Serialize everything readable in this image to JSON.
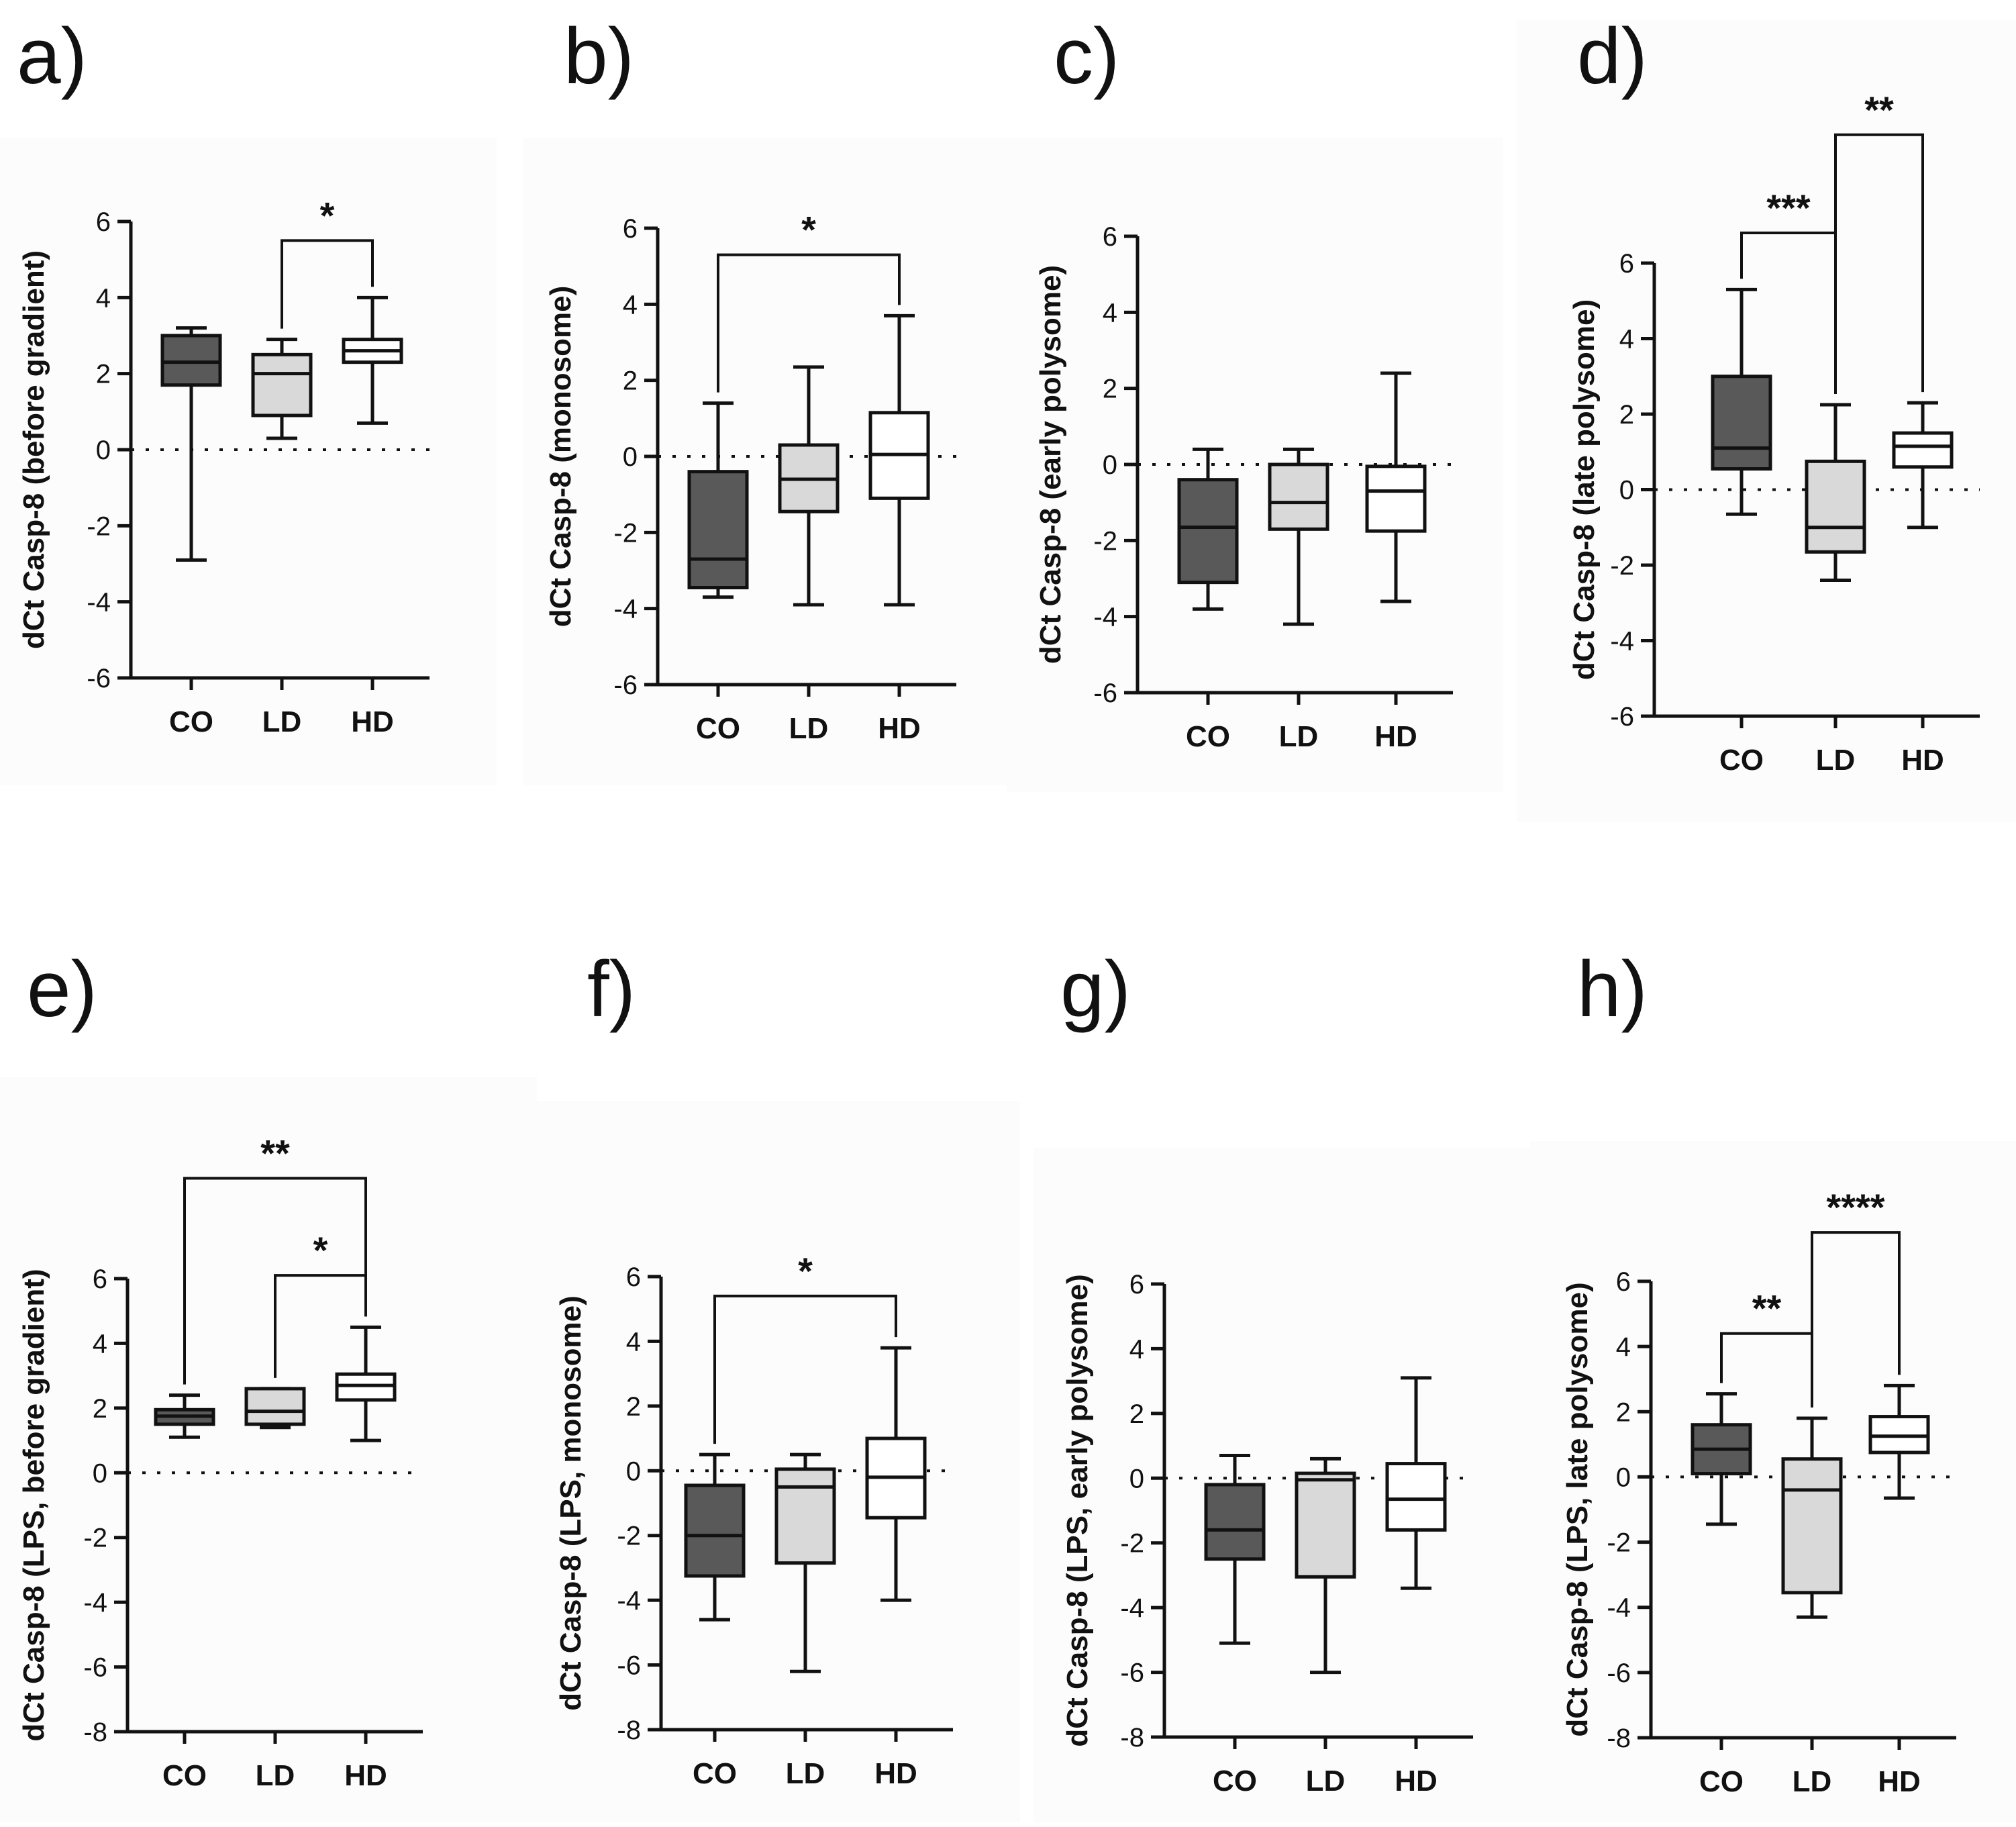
{
  "colors": {
    "CO": "#595959",
    "LD": "#d9d9d9",
    "HD": "#ffffff",
    "stroke": "#111111"
  },
  "chart_data": [
    {
      "panel": "a)",
      "type": "box",
      "ylabel": "dCt Casp-8 (before gradient)",
      "categories": [
        "CO",
        "LD",
        "HD"
      ],
      "ylim": [
        -6,
        6
      ],
      "yticks": [
        6,
        4,
        2,
        0,
        -2,
        -4,
        -6
      ],
      "boxes": [
        {
          "min": -2.9,
          "q1": 1.7,
          "median": 2.3,
          "q3": 3.0,
          "max": 3.2
        },
        {
          "min": 0.3,
          "q1": 0.9,
          "median": 2.0,
          "q3": 2.5,
          "max": 2.9
        },
        {
          "min": 0.7,
          "q1": 2.3,
          "median": 2.6,
          "q3": 2.9,
          "max": 4.0
        }
      ],
      "significance": [
        {
          "from": "LD",
          "to": "HD",
          "label": "*",
          "y": 5.5
        }
      ]
    },
    {
      "panel": "b)",
      "type": "box",
      "ylabel": "dCt Casp-8 (monosome)",
      "categories": [
        "CO",
        "LD",
        "HD"
      ],
      "ylim": [
        -6,
        6
      ],
      "yticks": [
        6,
        4,
        2,
        0,
        -2,
        -4,
        -6
      ],
      "boxes": [
        {
          "min": -3.7,
          "q1": -3.45,
          "median": -2.7,
          "q3": -0.4,
          "max": 1.4
        },
        {
          "min": -3.9,
          "q1": -1.45,
          "median": -0.6,
          "q3": 0.3,
          "max": 2.35
        },
        {
          "min": -3.9,
          "q1": -1.1,
          "median": 0.05,
          "q3": 1.15,
          "max": 3.7
        }
      ],
      "significance": [
        {
          "from": "CO",
          "to": "HD",
          "label": "*",
          "y": 5.3
        }
      ]
    },
    {
      "panel": "c)",
      "type": "box",
      "ylabel": "dCt Casp-8 (early polysome)",
      "categories": [
        "CO",
        "LD",
        "HD"
      ],
      "ylim": [
        -6,
        6
      ],
      "yticks": [
        6,
        4,
        2,
        0,
        -2,
        -4,
        -6
      ],
      "boxes": [
        {
          "min": -3.8,
          "q1": -3.1,
          "median": -1.65,
          "q3": -0.4,
          "max": 0.4
        },
        {
          "min": -4.2,
          "q1": -1.7,
          "median": -1.0,
          "q3": 0.0,
          "max": 0.4
        },
        {
          "min": -3.6,
          "q1": -1.75,
          "median": -0.7,
          "q3": -0.05,
          "max": 2.4
        }
      ],
      "significance": []
    },
    {
      "panel": "d)",
      "type": "box",
      "ylabel": "dCt Casp-8 (late polysome)",
      "categories": [
        "CO",
        "LD",
        "HD"
      ],
      "ylim": [
        -6,
        6
      ],
      "yticks": [
        6,
        4,
        2,
        0,
        -2,
        -4,
        -6
      ],
      "boxes": [
        {
          "min": -0.65,
          "q1": 0.55,
          "median": 1.1,
          "q3": 3.0,
          "max": 5.3
        },
        {
          "min": -2.4,
          "q1": -1.65,
          "median": -1.0,
          "q3": 0.75,
          "max": 2.25
        },
        {
          "min": -1.0,
          "q1": 0.6,
          "median": 1.15,
          "q3": 1.5,
          "max": 2.3
        }
      ],
      "significance": [
        {
          "from": "CO",
          "to": "LD",
          "label": "***",
          "y": 6.8
        },
        {
          "from": "LD",
          "to": "HD",
          "label": "**",
          "y": 9.4
        }
      ]
    },
    {
      "panel": "e)",
      "type": "box",
      "ylabel": "dCt Casp-8 (LPS, before gradient)",
      "categories": [
        "CO",
        "LD",
        "HD"
      ],
      "ylim": [
        -8,
        6
      ],
      "yticks": [
        6,
        4,
        2,
        0,
        -2,
        -4,
        -6,
        -8
      ],
      "boxes": [
        {
          "min": 1.1,
          "q1": 1.5,
          "median": 1.75,
          "q3": 1.95,
          "max": 2.4
        },
        {
          "min": 1.4,
          "q1": 1.5,
          "median": 1.9,
          "q3": 2.6,
          "max": 2.6
        },
        {
          "min": 1.0,
          "q1": 2.25,
          "median": 2.7,
          "q3": 3.05,
          "max": 4.5
        }
      ],
      "significance": [
        {
          "from": "LD",
          "to": "HD",
          "label": "*",
          "y": 6.1
        },
        {
          "from": "CO",
          "to": "HD",
          "label": "**",
          "y": 9.1
        }
      ]
    },
    {
      "panel": "f)",
      "type": "box",
      "ylabel": "dCt Casp-8 (LPS, monosome)",
      "categories": [
        "CO",
        "LD",
        "HD"
      ],
      "ylim": [
        -8,
        6
      ],
      "yticks": [
        6,
        4,
        2,
        0,
        -2,
        -4,
        -6,
        -8
      ],
      "boxes": [
        {
          "min": -4.6,
          "q1": -3.25,
          "median": -2.0,
          "q3": -0.45,
          "max": 0.5
        },
        {
          "min": -6.2,
          "q1": -2.85,
          "median": -0.5,
          "q3": 0.05,
          "max": 0.5
        },
        {
          "min": -4.0,
          "q1": -1.45,
          "median": -0.2,
          "q3": 1.0,
          "max": 3.8
        }
      ],
      "significance": [
        {
          "from": "CO",
          "to": "HD",
          "label": "*",
          "y": 5.4
        }
      ]
    },
    {
      "panel": "g)",
      "type": "box",
      "ylabel": "dCt Casp-8 (LPS, early polysome)",
      "categories": [
        "CO",
        "LD",
        "HD"
      ],
      "ylim": [
        -8,
        6
      ],
      "yticks": [
        6,
        4,
        2,
        0,
        -2,
        -4,
        -6,
        -8
      ],
      "boxes": [
        {
          "min": -5.1,
          "q1": -2.5,
          "median": -1.6,
          "q3": -0.2,
          "max": 0.7
        },
        {
          "min": -6.0,
          "q1": -3.05,
          "median": -0.05,
          "q3": 0.15,
          "max": 0.6
        },
        {
          "min": -3.4,
          "q1": -1.6,
          "median": -0.65,
          "q3": 0.45,
          "max": 3.1
        }
      ],
      "significance": []
    },
    {
      "panel": "h)",
      "type": "box",
      "ylabel": "dCt Casp-8 (LPS, late polysome)",
      "categories": [
        "CO",
        "LD",
        "HD"
      ],
      "ylim": [
        -8,
        6
      ],
      "yticks": [
        6,
        4,
        2,
        0,
        -2,
        -4,
        -6,
        -8
      ],
      "boxes": [
        {
          "min": -1.45,
          "q1": 0.1,
          "median": 0.85,
          "q3": 1.6,
          "max": 2.55
        },
        {
          "min": -4.3,
          "q1": -3.55,
          "median": -0.4,
          "q3": 0.55,
          "max": 1.8
        },
        {
          "min": -0.65,
          "q1": 0.75,
          "median": 1.25,
          "q3": 1.85,
          "max": 2.8
        }
      ],
      "significance": [
        {
          "from": "CO",
          "to": "LD",
          "label": "**",
          "y": 4.4
        },
        {
          "from": "LD",
          "to": "HD",
          "label": "****",
          "y": 7.5
        }
      ]
    }
  ]
}
